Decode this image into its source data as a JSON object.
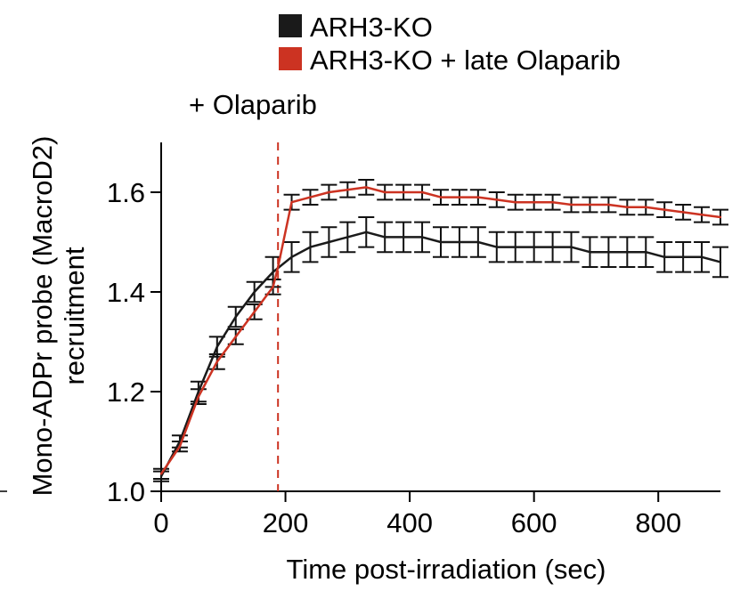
{
  "chart_data": {
    "type": "line",
    "title": "",
    "xlabel": "Time post-irradiation (sec)",
    "ylabel_line1": "Mono-ADPr probe (MacroD2)",
    "ylabel_line2": "recruitment",
    "xlim": [
      0,
      900
    ],
    "ylim": [
      1.0,
      1.7
    ],
    "xticks": [
      0,
      200,
      400,
      600,
      800
    ],
    "xtick_labels": [
      "0",
      "200",
      "400",
      "600",
      "800"
    ],
    "yticks": [
      1.0,
      1.2,
      1.4,
      1.6
    ],
    "ytick_labels": [
      "1.0",
      "1.2",
      "1.4",
      "1.6"
    ],
    "grid": false,
    "legend_position": "top-right",
    "annotation": {
      "text": "+ Olaparib",
      "x": 188
    },
    "series": [
      {
        "name": "ARH3-KO",
        "color": "#1a1a1a",
        "x": [
          0,
          30,
          60,
          90,
          120,
          150,
          180,
          210,
          240,
          270,
          300,
          330,
          360,
          390,
          420,
          450,
          480,
          510,
          540,
          570,
          600,
          630,
          660,
          690,
          720,
          750,
          780,
          810,
          840,
          870,
          900
        ],
        "y": [
          1.03,
          1.1,
          1.2,
          1.29,
          1.35,
          1.4,
          1.44,
          1.47,
          1.49,
          1.5,
          1.51,
          1.52,
          1.51,
          1.51,
          1.51,
          1.5,
          1.5,
          1.5,
          1.49,
          1.49,
          1.49,
          1.49,
          1.49,
          1.48,
          1.48,
          1.48,
          1.48,
          1.47,
          1.47,
          1.47,
          1.46
        ],
        "error": [
          0.01,
          0.012,
          0.02,
          0.02,
          0.02,
          0.02,
          0.03,
          0.03,
          0.03,
          0.03,
          0.03,
          0.03,
          0.03,
          0.03,
          0.03,
          0.03,
          0.03,
          0.03,
          0.03,
          0.03,
          0.03,
          0.03,
          0.03,
          0.03,
          0.03,
          0.03,
          0.03,
          0.03,
          0.03,
          0.03,
          0.03
        ]
      },
      {
        "name": "ARH3-KO + late Olaparib",
        "color": "#cc3322",
        "x": [
          0,
          30,
          60,
          90,
          120,
          150,
          180,
          188,
          210,
          240,
          270,
          300,
          330,
          360,
          390,
          420,
          450,
          480,
          510,
          540,
          570,
          600,
          630,
          660,
          690,
          720,
          750,
          780,
          810,
          840,
          870,
          900
        ],
        "y": [
          1.035,
          1.09,
          1.19,
          1.26,
          1.31,
          1.36,
          1.41,
          1.45,
          1.58,
          1.59,
          1.6,
          1.605,
          1.61,
          1.6,
          1.6,
          1.6,
          1.59,
          1.59,
          1.59,
          1.585,
          1.58,
          1.58,
          1.58,
          1.575,
          1.575,
          1.575,
          1.57,
          1.57,
          1.565,
          1.56,
          1.555,
          1.55
        ],
        "error": [
          0.01,
          0.01,
          0.015,
          0.015,
          0.015,
          0.015,
          0.015,
          0.0,
          0.015,
          0.015,
          0.015,
          0.015,
          0.015,
          0.015,
          0.015,
          0.015,
          0.015,
          0.015,
          0.015,
          0.015,
          0.015,
          0.015,
          0.015,
          0.015,
          0.015,
          0.015,
          0.015,
          0.015,
          0.015,
          0.015,
          0.015,
          0.015
        ]
      }
    ]
  }
}
